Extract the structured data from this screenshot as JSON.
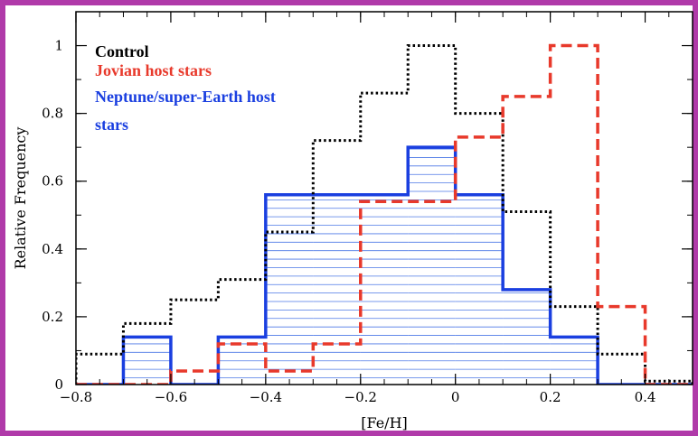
{
  "colors": {
    "border": "#b03aa9",
    "control": "#000000",
    "jovian": "#e8392b",
    "neptune": "#1a3fe0",
    "hatch": "#4d78e6"
  },
  "chart_data": {
    "type": "histogram",
    "xlabel": "[Fe/H]",
    "ylabel": "Relative  Frequency",
    "xlim": [
      -0.8,
      0.5
    ],
    "ylim": [
      0,
      1.1
    ],
    "xticks": [
      -0.8,
      -0.6,
      -0.4,
      -0.2,
      0,
      0.2,
      0.4
    ],
    "xtick_labels": [
      "−0.8",
      "−0.6",
      "−0.4",
      "−0.2",
      "0",
      "0.2",
      "0.4"
    ],
    "yticks": [
      0,
      0.2,
      0.4,
      0.6,
      0.8,
      1
    ],
    "ytick_labels": [
      "0",
      "0.2",
      "0.4",
      "0.6",
      "0.8",
      "1"
    ],
    "bin_edges": [
      -0.8,
      -0.7,
      -0.6,
      -0.5,
      -0.4,
      -0.3,
      -0.2,
      -0.1,
      0,
      0.1,
      0.2,
      0.3,
      0.4,
      0.5
    ],
    "series": [
      {
        "name": "Control",
        "style": "dotted",
        "values": [
          0.09,
          0.18,
          0.25,
          0.31,
          0.45,
          0.72,
          0.86,
          1.0,
          0.8,
          0.51,
          0.23,
          0.09,
          0.01
        ]
      },
      {
        "name": "Jovian host stars",
        "style": "dashed",
        "values": [
          0,
          0,
          0.04,
          0.12,
          0.04,
          0.12,
          0.54,
          0.54,
          0.73,
          0.85,
          1.0,
          0.23,
          0
        ]
      },
      {
        "name": "Neptune/super-Earth host stars",
        "style": "solid-hatched",
        "values": [
          0,
          0.14,
          0,
          0.14,
          0.56,
          0.56,
          0.56,
          0.7,
          0.56,
          0.28,
          0.14,
          0,
          0
        ]
      }
    ],
    "legend": {
      "placement": "top-left",
      "lines": [
        {
          "text": "Control",
          "series": "control"
        },
        {
          "text": "Jovian host stars",
          "series": "jovian"
        },
        {
          "text": "Neptune/super-Earth host",
          "series": "neptune"
        },
        {
          "text": "stars",
          "series": "neptune"
        }
      ]
    }
  }
}
